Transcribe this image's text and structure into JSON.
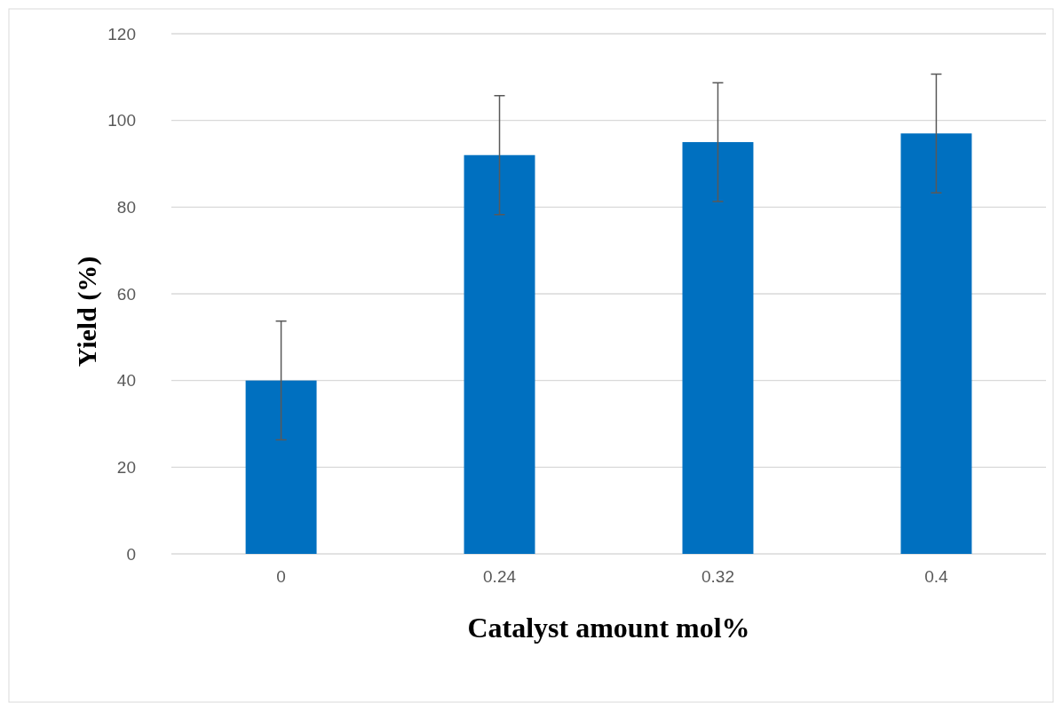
{
  "chart_data": {
    "type": "bar",
    "xlabel": "Catalyst amount mol%",
    "ylabel": "Yield (%)",
    "categories": [
      "0",
      "0.24",
      "0.32",
      "0.4"
    ],
    "values": [
      40,
      92,
      95,
      97
    ],
    "errors": [
      13.7,
      13.7,
      13.7,
      13.7
    ],
    "color": "#0070c0",
    "ylim": [
      0,
      120
    ],
    "yticks": [
      0,
      20,
      40,
      60,
      80,
      100,
      120
    ],
    "grid": "y"
  }
}
